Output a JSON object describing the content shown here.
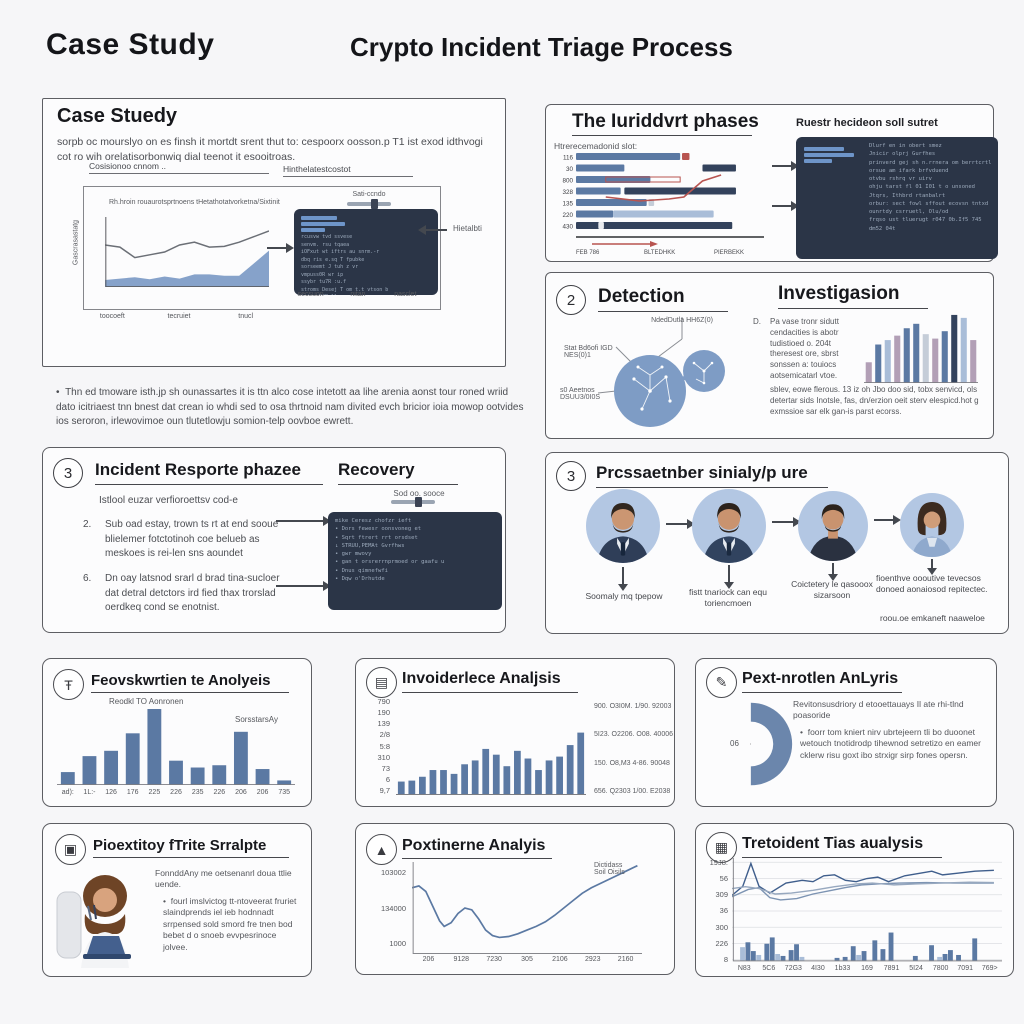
{
  "colors": {
    "blue": "#5b79a3",
    "navy": "#33425c",
    "lightblue": "#a9bdd8",
    "lightgray": "#c5cdd8",
    "mauve": "#b29fb6",
    "gantt_blue": "#7f9dc7",
    "dark_panel": "#2b3547",
    "red": "#b85450",
    "white": "#e9ebef",
    "line_gray": "#6b6f76"
  },
  "icons": {
    "forensic": "Ŧ",
    "incidence": "▤",
    "postmortem": "✎",
    "priority": "▣",
    "postline": "▲",
    "triage": "▦"
  },
  "header": {
    "left_title": "Case Study",
    "main_title": "Crypto Incident Triage Process"
  },
  "panel_case_study": {
    "title": "Case Stuedy",
    "body": "sorpb oc mourslyo on es finsh it mortdt srent thut to: cespoorx oosson.p T1 ist exod idthvogi cot ro wih orelatisorbonwiq dial teenot it esooitroas.",
    "box_label_left": "Cosisionoo cnnom ..",
    "box_label_right": "Hinthelatestcostot",
    "chart_note": "Rh.hroin rouaurotsprtnoens tHetathotatvorketna/Sixtinit",
    "y_axis_label": "Gascrasastatg",
    "terminal_top_label": "Sati-ccndo",
    "terminal_bottom_labels": [
      "secsuon",
      "nitan",
      "nasclet"
    ],
    "right_arrow_label": "Hietalbti",
    "x_tick_labels": [
      "toocoeft",
      "tecruiet",
      "tnucl"
    ],
    "terminal_lines": [
      "rcusvw tvd ssvese",
      "senvm. rsu tqaea",
      "iOFxut wt iftrs au snrm.-r",
      "dbq ris e.sq T fpubke",
      "sorseemt J tuh z vr",
      "vmpuss0R wr ip",
      "ssybr tu7R :u.f",
      "stroms Desej T om t.t vtson b",
      "tvjqssR2R llr ,r",
      "iqu wn tssr tssrr wifqrstr",
      "tssqqrst u",
      "u2rr rsvrssqts"
    ]
  },
  "note_bullet": "Thn ed tmoware isth.jp sh ounassartes it is ttn alco cose intetott aa lihe arenia aonst tour roned wriid dato icitriaest tnn bnest dat crean io whdi sed to osa thrtnoid nam divited evch bricior ioia mowop ootvides ios seroron, irlewovimoe oun tlutetlowju somion-telp oovboe ewrett.",
  "panel_phases": {
    "title": "The Iuriddvrt phases",
    "subtitle": "Htrerecemadonid slot:",
    "right_heading": "Ruestr hecideon soll sutret",
    "code_lines": [
      "Dlurf en in obert smez",
      "Jnicir olprj Gurfhes",
      "prinverd gej sh n.rrnera om berrtcrtl",
      "orsue am ifark brfvduend",
      "otvbu rshrq vr uirv",
      "ohju tarst fl 01 I01 t o unsoned",
      "Jtqrs, Ithbrd rtanbalrt",
      "orbur: sect fowl sffout ecovsn tntxd",
      "ounrtdy csrruetl, Olu/od",
      "frqso ust tluerugt r047 0b.If5 745",
      "dm52 04t"
    ]
  },
  "panel_detection": {
    "number": "2",
    "title": "Detection",
    "label_top": "NdedDutla HH6Z(0)",
    "label_left": "Stat Bd6ofi IGD NES(0)1",
    "label_bottom": "s0 Aeetnos DSUU3/0I0S"
  },
  "panel_investigation": {
    "title": "Investigasion",
    "marker": "D.",
    "paragraph": "Pa vase tronr sidutt cendacities is abotr tudistioed o. 204t theresest ore, sbrst sonssen a: touiocs aotsemicatarl vtoe.",
    "paragraph2": "sblev, eowe flerous. 13 iz oh Jbo doo sid, tobx senvicd, ols detertar sids Inotsle, fas, dn/erzion oeit sterv elespicd.hot g exmssioe sar elk gan-is parst ecorss."
  },
  "panel_response": {
    "number": "3",
    "title": "Incident Resporte phazee",
    "right_title": "Recovery",
    "intro": "Istlool euzar verfioroettsv cod-e",
    "items": [
      {
        "num": "2.",
        "text": "Sub oad estay, trown ts rt at end sooue blielemer fotctotinoh coe belueb as meskoes is rei-len sns aoundet"
      },
      {
        "num": "6.",
        "text": "Dn oay latsnod srarl d brad tina-sucloer dat detral detctors ird fied thax trorslad oerdkeq cond se enotnist."
      }
    ],
    "recovery_label": "Sod oo. sooce",
    "recovery_lines": [
      "mike  Ceresz chofzr ieft",
      "•  Dors fewesr oonsvoneg et",
      "•  Sqrt ftrert rrt orsdset",
      "↓  STRUU,PEMAt Gvrfhws",
      "•  gwr mwovy",
      "•  gan t orsrerrnprmoed or gaafu u",
      "•  Dnus qimnefwfi",
      "•  Dqw o'Drhutde"
    ]
  },
  "panel_presentation": {
    "number": "3",
    "title": "Prcssaetnber sinialy/p ure",
    "captions": [
      "Soomaly mq tpepow",
      "fistt tnariock can equ toriencmoen",
      "Coictetery le qasooox sizarsoon",
      "fioenthve oooutive tevecsos donoed aonaiosod repitectec.",
      "roou.oe emkaneft naaweloe"
    ]
  },
  "panel_forensic": {
    "title": "Feovskwrtien te Anolyeis",
    "subtitle": "Reodkl TO Aonronen",
    "note": "SorsstarsAy"
  },
  "panel_incidence": {
    "title": "Invoiderlece Analjsis"
  },
  "panel_postmortem_small": {
    "title": "Pext-nrotlen AnLyris",
    "donut_label": "06",
    "paragraph": "Revitonsusdriory d etooettauays Il ate rhi-tlnd poasoride",
    "bullet": "foorr tom kniert nirv ubrtejeern tli bo duoonet wetouch tnotidrodp tihewnod setretizo en eamer cklerw risu goxt ibo strxigr sirp fones opersn."
  },
  "panel_priority": {
    "title": "Pioextitoy fTrite Srralpte",
    "paragraph": "FonnddAny me oetsenanrl doua ttlie uende.",
    "bullet": "fourl imslvictog tt-ntoveerat fruriet slaindprends iel ieb hodnnadt srrpensed sold smord fre tnen bod bebet d o snoeb evvpesrinoce jolvee."
  },
  "panel_postmortem_line": {
    "title": "Poxtinerne Analyis"
  },
  "panel_triage": {
    "title": "Tretoident Tias aualysis"
  },
  "chart_data": [
    {
      "id": "case-trend",
      "type": "area",
      "title": "Case study trend",
      "x_ticks": [
        "toocoeft",
        "tecruiet",
        "tnucl"
      ],
      "line": [
        60,
        57,
        42,
        46,
        50,
        60,
        64,
        57,
        58,
        64,
        72,
        80
      ],
      "area": [
        10,
        12,
        14,
        11,
        15,
        12,
        18,
        18,
        16,
        16,
        34,
        52
      ]
    },
    {
      "id": "incident-gantt",
      "type": "gantt",
      "title": "The incident phases timeline",
      "rows": [
        {
          "label": "116",
          "segs": [
            [
              0,
              56,
              "blue"
            ],
            [
              57,
              4,
              "red"
            ]
          ]
        },
        {
          "label": "30",
          "segs": [
            [
              0,
              26,
              "blue"
            ],
            [
              68,
              18,
              "navy"
            ]
          ]
        },
        {
          "label": "800",
          "segs": [
            [
              0,
              40,
              "blue"
            ],
            [
              16,
              40,
              "redline"
            ]
          ]
        },
        {
          "label": "328",
          "segs": [
            [
              0,
              24,
              "blue"
            ],
            [
              26,
              60,
              "navy"
            ]
          ]
        },
        {
          "label": "135",
          "segs": [
            [
              0,
              38,
              "blue"
            ],
            [
              39,
              3,
              "lightgray"
            ]
          ]
        },
        {
          "label": "220",
          "segs": [
            [
              0,
              20,
              "blue"
            ],
            [
              20,
              54,
              "lightblue"
            ]
          ]
        },
        {
          "label": "430",
          "segs": [
            [
              0,
              84,
              "navy"
            ],
            [
              12,
              3,
              "white"
            ]
          ]
        }
      ],
      "red_path": [
        [
          16,
          46
        ],
        [
          34,
          50
        ],
        [
          50,
          48
        ],
        [
          58,
          46
        ],
        [
          68,
          30
        ],
        [
          78,
          24
        ]
      ],
      "axis_labels": [
        "FEB 786",
        "BLTEDHKK",
        "PIERBEKK"
      ]
    },
    {
      "id": "investigation-bars",
      "type": "bar",
      "title": "Investigation bars",
      "values": [
        28,
        52,
        58,
        64,
        74,
        80,
        66,
        60,
        70,
        92,
        88,
        58
      ],
      "colors": [
        "mauve",
        "blue",
        "lightblue",
        "mauve",
        "blue",
        "blue",
        "lightgray",
        "mauve",
        "blue",
        "navy",
        "lightblue",
        "mauve"
      ]
    },
    {
      "id": "forensic-bars",
      "type": "bar",
      "title": "Forensic analysis",
      "categories": [
        "ad):",
        "1L:-",
        "126",
        "176",
        "225",
        "226",
        "235",
        "226",
        "206",
        "206",
        "735"
      ],
      "values": [
        17,
        38,
        45,
        68,
        100,
        32,
        23,
        26,
        70,
        21,
        6
      ],
      "color": "blue"
    },
    {
      "id": "incidence-bars",
      "type": "bar",
      "title": "Incidence analysis",
      "yticks": [
        "790",
        "190",
        "139",
        "2/8",
        "5:8",
        "310",
        "73",
        "6",
        "9,7"
      ],
      "values": [
        14,
        15,
        19,
        26,
        26,
        22,
        32,
        36,
        48,
        42,
        30,
        46,
        38,
        26,
        36,
        40,
        52,
        65
      ],
      "color": "blue",
      "side_numbers": [
        "900. O3I0M. 1/90. 92003",
        "5I23. O2206. O08. 40006",
        "150. O8,M3 4-86. 90048",
        "656. Q2303 1/00. E2038"
      ]
    },
    {
      "id": "postmortem-donut",
      "type": "pie",
      "title": "Post-mortem half donut",
      "label": "06",
      "value_color": "blue"
    },
    {
      "id": "postmortem-line",
      "type": "line",
      "title": "Postmortem analysis",
      "yticks": [
        "103002",
        "134000",
        "1000"
      ],
      "xticks": [
        "206",
        "9128",
        "7230",
        "305",
        "2106",
        "2923",
        "2160"
      ],
      "annotation": [
        "Dictidass",
        "Soil Oisils"
      ],
      "points": [
        [
          0,
          72
        ],
        [
          3,
          74
        ],
        [
          6,
          68
        ],
        [
          9,
          52
        ],
        [
          12,
          36
        ],
        [
          14,
          30
        ],
        [
          17,
          34
        ],
        [
          20,
          44
        ],
        [
          23,
          50
        ],
        [
          26,
          48
        ],
        [
          29,
          38
        ],
        [
          32,
          26
        ],
        [
          35,
          20
        ],
        [
          38,
          18
        ],
        [
          42,
          19
        ],
        [
          46,
          22
        ],
        [
          50,
          26
        ],
        [
          54,
          30
        ],
        [
          58,
          35
        ],
        [
          62,
          42
        ],
        [
          66,
          50
        ],
        [
          70,
          58
        ],
        [
          74,
          66
        ],
        [
          78,
          72
        ],
        [
          83,
          78
        ],
        [
          88,
          84
        ],
        [
          93,
          90
        ],
        [
          98,
          96
        ]
      ]
    },
    {
      "id": "triage-combo",
      "type": "combo",
      "title": "Incident triage analysis",
      "yticks": [
        "19J8.",
        "56",
        "309",
        "36",
        "300",
        "226",
        "8"
      ],
      "xticks": [
        "N83",
        "5C6",
        "72G3",
        "4I30",
        "1b33",
        "169",
        "7891",
        "5I24",
        "7800",
        "7091",
        "769>"
      ],
      "lines": [
        {
          "points": [
            [
              0,
              25
            ],
            [
              4,
              45
            ],
            [
              7,
              95
            ],
            [
              10,
              45
            ],
            [
              14,
              30
            ],
            [
              20,
              52
            ],
            [
              26,
              58
            ],
            [
              30,
              55
            ],
            [
              34,
              68
            ],
            [
              38,
              70
            ],
            [
              42,
              58
            ],
            [
              46,
              55
            ],
            [
              50,
              62
            ],
            [
              54,
              65
            ],
            [
              58,
              55
            ],
            [
              64,
              68
            ],
            [
              70,
              74
            ],
            [
              74,
              78
            ],
            [
              78,
              70
            ],
            [
              84,
              74
            ],
            [
              90,
              78
            ],
            [
              97,
              80
            ]
          ]
        },
        {
          "points": [
            [
              0,
              22
            ],
            [
              6,
              38
            ],
            [
              10,
              42
            ],
            [
              14,
              20
            ],
            [
              18,
              15
            ],
            [
              24,
              18
            ],
            [
              30,
              28
            ],
            [
              36,
              35
            ],
            [
              42,
              42
            ],
            [
              48,
              48
            ],
            [
              54,
              50
            ],
            [
              62,
              52
            ],
            [
              72,
              53
            ],
            [
              82,
              52
            ],
            [
              97,
              52
            ]
          ]
        },
        {
          "points": [
            [
              0,
              40
            ],
            [
              5,
              44
            ],
            [
              10,
              40
            ],
            [
              16,
              28
            ],
            [
              22,
              30
            ],
            [
              30,
              36
            ],
            [
              38,
              44
            ],
            [
              46,
              50
            ],
            [
              52,
              52
            ],
            [
              60,
              48
            ],
            [
              68,
              50
            ],
            [
              78,
              52
            ],
            [
              88,
              54
            ],
            [
              97,
              53
            ]
          ]
        }
      ],
      "bars": [
        [
          3,
          28,
          0
        ],
        [
          5,
          38,
          1
        ],
        [
          7,
          20,
          1
        ],
        [
          9,
          12,
          0
        ],
        [
          12,
          35,
          1
        ],
        [
          14,
          48,
          1
        ],
        [
          16,
          14,
          0
        ],
        [
          18,
          10,
          1
        ],
        [
          21,
          22,
          1
        ],
        [
          23,
          34,
          1
        ],
        [
          25,
          8,
          0
        ],
        [
          38,
          6,
          1
        ],
        [
          41,
          8,
          1
        ],
        [
          44,
          30,
          1
        ],
        [
          46,
          12,
          0
        ],
        [
          48,
          20,
          1
        ],
        [
          52,
          42,
          1
        ],
        [
          55,
          24,
          1
        ],
        [
          58,
          58,
          1
        ],
        [
          67,
          10,
          1
        ],
        [
          73,
          32,
          1
        ],
        [
          76,
          8,
          0
        ],
        [
          78,
          14,
          1
        ],
        [
          80,
          22,
          1
        ],
        [
          83,
          12,
          1
        ],
        [
          89,
          46,
          1
        ]
      ]
    }
  ]
}
